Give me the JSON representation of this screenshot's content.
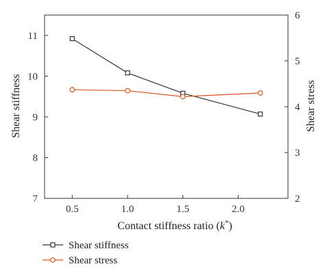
{
  "chart_data": {
    "type": "line",
    "title": "",
    "xlabel_main": "Contact stiffness ratio (",
    "xlabel_symbol": "k",
    "xlabel_sup": "*",
    "xlabel_end": ")",
    "ylabel_left": "Shear stiffness",
    "ylabel_right": "Shear stress",
    "xlim": [
      0.25,
      2.45
    ],
    "x_ticks": [
      0.5,
      1.0,
      1.5,
      2.0
    ],
    "x_tick_labels": [
      "0.5",
      "1.0",
      "1.5",
      "2.0"
    ],
    "ylim_left": [
      7,
      11.5
    ],
    "y_left_ticks": [
      7,
      8,
      9,
      10,
      11
    ],
    "y_left_tick_labels": [
      "7",
      "8",
      "9",
      "10",
      "11"
    ],
    "ylim_right": [
      2,
      6
    ],
    "y_right_ticks": [
      2,
      3,
      4,
      5,
      6
    ],
    "y_right_tick_labels": [
      "2",
      "3",
      "4",
      "5",
      "6"
    ],
    "grid": false,
    "legend_placement": "below",
    "series": [
      {
        "name": "Shear stiffness",
        "axis": "left",
        "color": "#333333",
        "marker": "square",
        "x": [
          0.5,
          1.0,
          1.5,
          2.2
        ],
        "values": [
          10.92,
          10.08,
          9.58,
          9.07
        ]
      },
      {
        "name": "Shear stress",
        "axis": "right",
        "color": "#d9541e",
        "marker": "circle",
        "x": [
          0.5,
          1.0,
          1.5,
          2.2
        ],
        "values": [
          4.37,
          4.35,
          4.22,
          4.3
        ]
      }
    ]
  }
}
